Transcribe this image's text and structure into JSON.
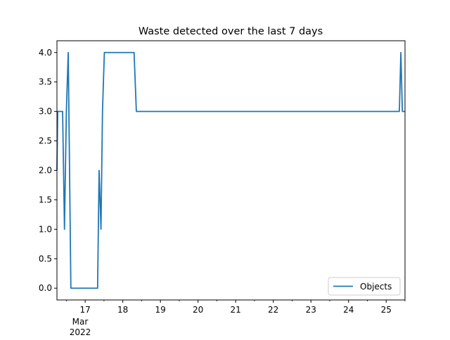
{
  "chart_data": {
    "type": "line",
    "title": "Waste detected over the last 7 days",
    "xlabel": "",
    "ylabel": "",
    "x_axis": {
      "kind": "date",
      "start": "2022-03-16",
      "range_days": [
        16.25,
        25.5
      ],
      "ticks": [
        {
          "value": 17,
          "label": "17"
        },
        {
          "value": 18,
          "label": "18"
        },
        {
          "value": 19,
          "label": "19"
        },
        {
          "value": 20,
          "label": "20"
        },
        {
          "value": 21,
          "label": "21"
        },
        {
          "value": 22,
          "label": "22"
        },
        {
          "value": 23,
          "label": "23"
        },
        {
          "value": 24,
          "label": "24"
        },
        {
          "value": 25,
          "label": "25"
        }
      ],
      "month_label": "Mar",
      "year_label": "2022"
    },
    "ylim": [
      -0.2,
      4.2
    ],
    "y_ticks": [
      "0.0",
      "0.5",
      "1.0",
      "1.5",
      "2.0",
      "2.5",
      "3.0",
      "3.5",
      "4.0"
    ],
    "grid": false,
    "legend_position": "lower-right",
    "series": [
      {
        "name": "Objects",
        "color": "#1f77b4",
        "x": [
          16.25,
          16.27,
          16.33,
          16.4,
          16.45,
          16.5,
          16.55,
          16.62,
          17.33,
          17.37,
          17.42,
          17.46,
          17.51,
          18.3,
          18.36,
          25.35,
          25.39,
          25.43,
          25.5
        ],
        "y": [
          2,
          3,
          3,
          3,
          1,
          3,
          4,
          0,
          0,
          2,
          1,
          3,
          4,
          4,
          3,
          3,
          4,
          3,
          3
        ]
      }
    ]
  }
}
